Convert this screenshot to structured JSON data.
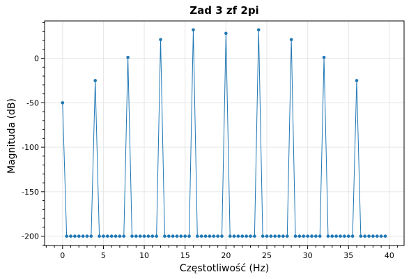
{
  "chart_data": {
    "type": "line",
    "title": "Zad 3 zf 2pi",
    "xlabel": "Częstotliwość (Hz)",
    "ylabel": "Magnituda (dB)",
    "xlim": [
      -2.2,
      41.8
    ],
    "ylim": [
      -210.5,
      42
    ],
    "xticks": [
      0,
      5,
      10,
      15,
      20,
      25,
      30,
      35,
      40
    ],
    "yticks": [
      0,
      -50,
      -100,
      -150,
      -200
    ],
    "xtick_labels": [
      "0",
      "5",
      "10",
      "15",
      "20",
      "25",
      "30",
      "35",
      "40"
    ],
    "ytick_labels": [
      "0",
      "-50",
      "-100",
      "-150",
      "-200"
    ],
    "grid": true,
    "color": "#1f77b4",
    "series": [
      {
        "x": [
          0,
          0.5,
          1,
          1.5,
          2,
          2.5,
          3,
          3.5,
          4,
          4.5,
          5,
          5.5,
          6,
          6.5,
          7,
          7.5,
          8,
          8.5,
          9,
          9.5,
          10,
          10.5,
          11,
          11.5,
          12,
          12.5,
          13,
          13.5,
          14,
          14.5,
          15,
          15.5,
          16,
          16.5,
          17,
          17.5,
          18,
          18.5,
          19,
          19.5,
          20,
          20.5,
          21,
          21.5,
          22,
          22.5,
          23,
          23.5,
          24,
          24.5,
          25,
          25.5,
          26,
          26.5,
          27,
          27.5,
          28,
          28.5,
          29,
          29.5,
          30,
          30.5,
          31,
          31.5,
          32,
          32.5,
          33,
          33.5,
          34,
          34.5,
          35,
          35.5,
          36,
          36.5,
          37,
          37.5,
          38,
          38.5,
          39,
          39.5
        ],
        "values": [
          -50,
          -200,
          -200,
          -200,
          -200,
          -200,
          -200,
          -200,
          -25,
          -200,
          -200,
          -200,
          -200,
          -200,
          -200,
          -200,
          1,
          -200,
          -200,
          -200,
          -200,
          -200,
          -200,
          -200,
          21,
          -200,
          -200,
          -200,
          -200,
          -200,
          -200,
          -200,
          32,
          -200,
          -200,
          -200,
          -200,
          -200,
          -200,
          -200,
          28,
          -200,
          -200,
          -200,
          -200,
          -200,
          -200,
          -200,
          32,
          -200,
          -200,
          -200,
          -200,
          -200,
          -200,
          -200,
          21,
          -200,
          -200,
          -200,
          -200,
          -200,
          -200,
          -200,
          1,
          -200,
          -200,
          -200,
          -200,
          -200,
          -200,
          -200,
          -25,
          -200,
          -200,
          -200,
          -200,
          -200,
          -200,
          -200
        ]
      }
    ]
  }
}
